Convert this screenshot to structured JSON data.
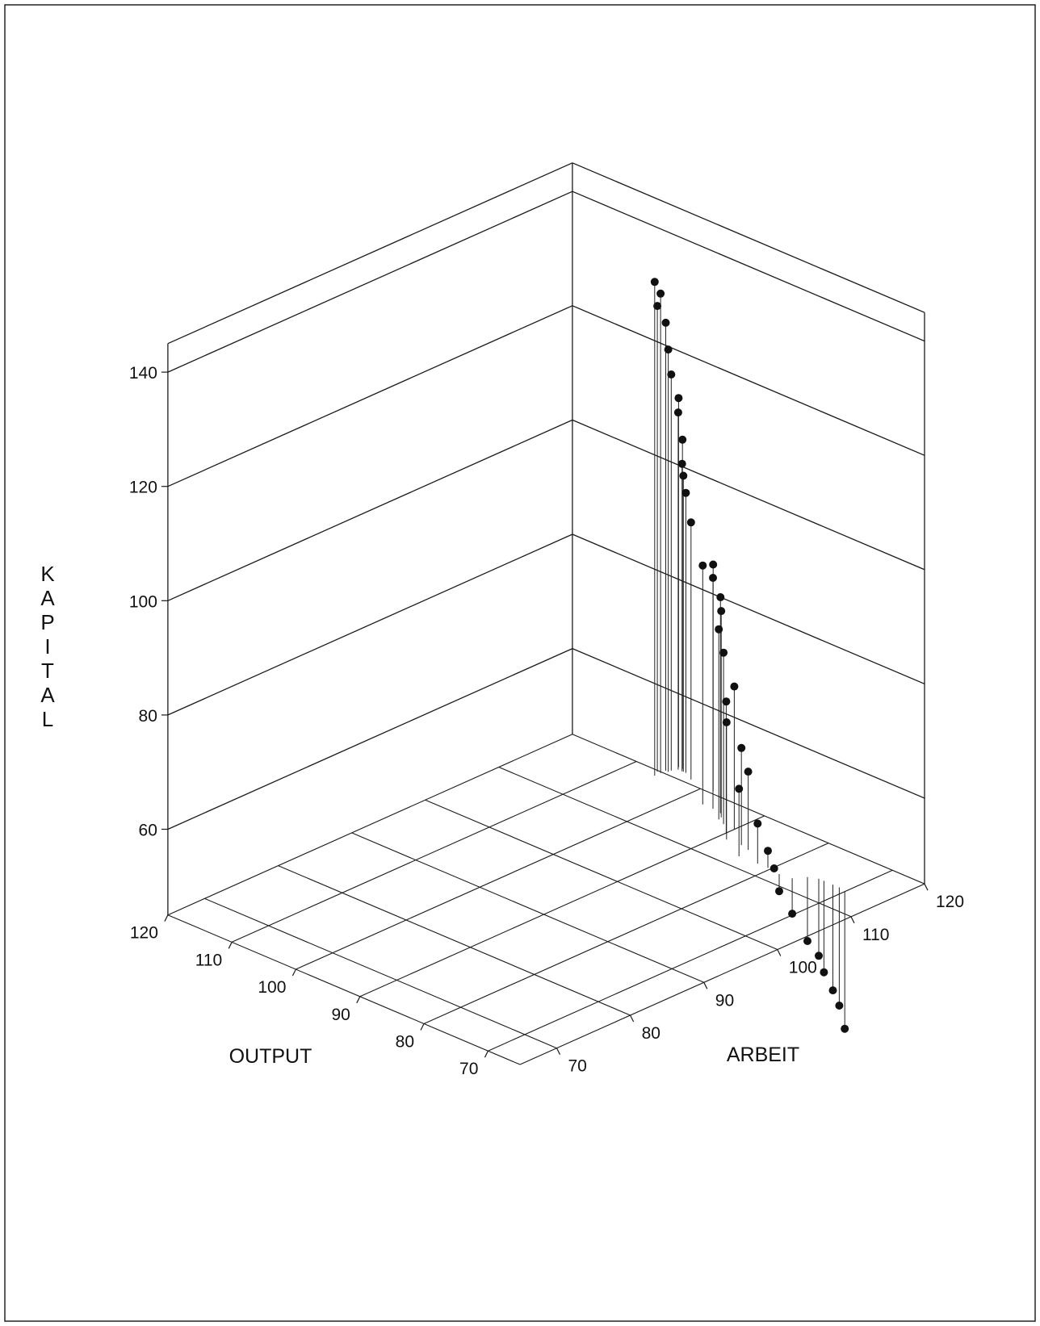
{
  "chart_data": {
    "type": "scatter",
    "subtype": "3d-needle",
    "title": "",
    "xlabel": "OUTPUT",
    "ylabel": "ARBEIT",
    "zlabel": "KAPITAL",
    "xlim": [
      65,
      120
    ],
    "ylim": [
      65,
      120
    ],
    "zlim": [
      45,
      145
    ],
    "x_ticks": [
      70,
      80,
      90,
      100,
      110,
      120
    ],
    "y_ticks": [
      70,
      80,
      90,
      100,
      110,
      120
    ],
    "z_ticks": [
      60,
      80,
      100,
      120,
      140
    ],
    "x_tick_labels": [
      "70",
      "80",
      "90",
      "100",
      "110",
      "120"
    ],
    "y_tick_labels": [
      "70",
      "80",
      "90",
      "100",
      "110",
      "120"
    ],
    "z_tick_labels": [
      "60",
      "80",
      "100",
      "120",
      "140"
    ],
    "grid": true,
    "points": [
      {
        "x": 106.0,
        "y": 119.0,
        "z": 131.4
      },
      {
        "x": 106.0,
        "y": 119.8,
        "z": 128.9
      },
      {
        "x": 106.5,
        "y": 119.8,
        "z": 126.5
      },
      {
        "x": 106.0,
        "y": 120.5,
        "z": 123.4
      },
      {
        "x": 105.6,
        "y": 120.5,
        "z": 118.9
      },
      {
        "x": 105.6,
        "y": 120.9,
        "z": 114.3
      },
      {
        "x": 105.6,
        "y": 121.9,
        "z": 109.6
      },
      {
        "x": 105.2,
        "y": 121.5,
        "z": 107.5
      },
      {
        "x": 105.0,
        "y": 121.9,
        "z": 102.6
      },
      {
        "x": 104.6,
        "y": 121.5,
        "z": 98.8
      },
      {
        "x": 104.4,
        "y": 121.5,
        "z": 96.8
      },
      {
        "x": 104.0,
        "y": 121.5,
        "z": 94.0
      },
      {
        "x": 102.4,
        "y": 120.8,
        "z": 90.0
      },
      {
        "x": 98.6,
        "y": 120.5,
        "z": 84.6
      },
      {
        "x": 97.0,
        "y": 117.7,
        "z": 86.8
      },
      {
        "x": 95.4,
        "y": 117.7,
        "z": 85.4
      },
      {
        "x": 94.0,
        "y": 117.5,
        "z": 82.8
      },
      {
        "x": 93.2,
        "y": 116.9,
        "z": 81.1
      },
      {
        "x": 93.0,
        "y": 116.4,
        "z": 78.3
      },
      {
        "x": 91.8,
        "y": 116.0,
        "z": 75.0
      },
      {
        "x": 90.0,
        "y": 115.9,
        "z": 70.0
      },
      {
        "x": 90.0,
        "y": 114.8,
        "z": 68.0
      },
      {
        "x": 88.8,
        "y": 113.8,
        "z": 65.5
      },
      {
        "x": 86.6,
        "y": 113.9,
        "z": 62.0
      },
      {
        "x": 85.2,
        "y": 113.6,
        "z": 58.7
      },
      {
        "x": 84.8,
        "y": 112.0,
        "z": 56.8
      },
      {
        "x": 82.0,
        "y": 112.1,
        "z": 52.0
      },
      {
        "x": 80.4,
        "y": 112.1,
        "z": 48.0
      },
      {
        "x": 79.2,
        "y": 111.9,
        "z": 45.6
      },
      {
        "x": 78.4,
        "y": 111.9,
        "z": 42.0
      },
      {
        "x": 76.6,
        "y": 112.1,
        "z": 38.8
      },
      {
        "x": 75.6,
        "y": 113.3,
        "z": 33.8
      },
      {
        "x": 74.4,
        "y": 113.8,
        "z": 31.5
      },
      {
        "x": 73.6,
        "y": 113.8,
        "z": 29.0
      },
      {
        "x": 72.2,
        "y": 113.8,
        "z": 26.5
      },
      {
        "x": 71.2,
        "y": 113.8,
        "z": 24.3
      },
      {
        "x": 70.0,
        "y": 113.5,
        "z": 21.0
      }
    ]
  }
}
